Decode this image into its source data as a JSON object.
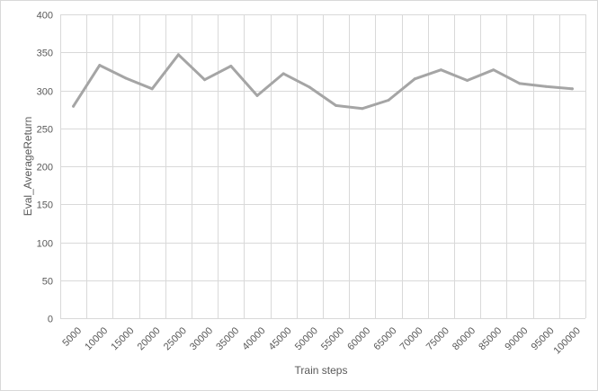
{
  "chart_data": {
    "type": "line",
    "title": "",
    "xlabel": "Train steps",
    "ylabel": "Eval_AverageReturn",
    "ylim": [
      0,
      400
    ],
    "yticks": [
      0,
      50,
      100,
      150,
      200,
      250,
      300,
      350,
      400
    ],
    "grid": true,
    "legend": "none",
    "categories": [
      "5000",
      "10000",
      "15000",
      "20000",
      "25000",
      "30000",
      "35000",
      "40000",
      "45000",
      "50000",
      "55000",
      "60000",
      "65000",
      "70000",
      "75000",
      "80000",
      "85000",
      "90000",
      "95000",
      "100000"
    ],
    "series": [
      {
        "values": [
          279,
          333,
          316,
          302,
          347,
          314,
          332,
          293,
          322,
          304,
          280,
          276,
          287,
          315,
          327,
          313,
          327,
          309,
          305,
          302
        ],
        "color": "#a5a5a5"
      }
    ]
  },
  "colors": {
    "gridline": "#d9d9d9",
    "axis_text": "#595959",
    "series_line": "#a5a5a5"
  }
}
